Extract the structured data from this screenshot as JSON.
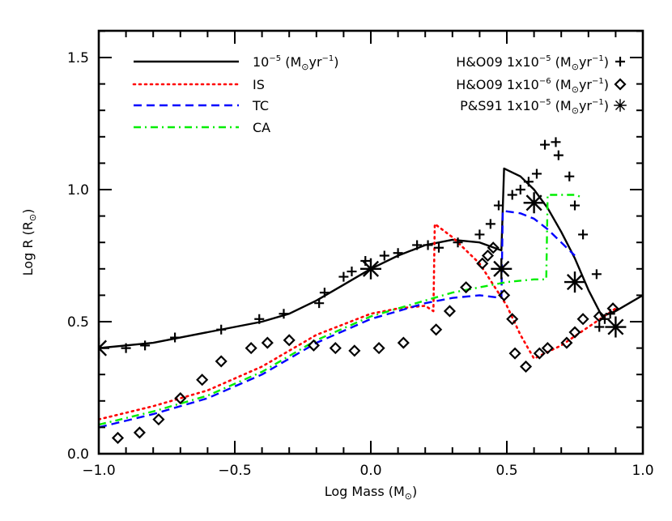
{
  "chart_data": {
    "type": "line",
    "title": "",
    "xlabel": "Log Mass (M⊙)",
    "ylabel": "Log R (R⊙)",
    "xlim": [
      -1.0,
      1.0
    ],
    "ylim": [
      0.0,
      1.6
    ],
    "grid": false,
    "legend_position": "upper-left (lines) and upper-right (markers)",
    "x_ticks": [
      -1.0,
      -0.5,
      0.0,
      0.5,
      1.0
    ],
    "x_tick_labels": [
      "−1.0",
      "−0.5",
      "0.0",
      "0.5",
      "1.0"
    ],
    "y_ticks": [
      0.0,
      0.5,
      1.0,
      1.5
    ],
    "y_tick_labels": [
      "0.0",
      "0.5",
      "1.0",
      "1.5"
    ],
    "x_minor_step": 0.1,
    "y_minor_step": 0.1,
    "series": [
      {
        "name": "10⁻⁵ (M⊙yr⁻¹)",
        "kind": "line",
        "style": "solid",
        "color": "#000000",
        "x": [
          -1.0,
          -0.8,
          -0.6,
          -0.4,
          -0.3,
          -0.2,
          -0.1,
          0.0,
          0.1,
          0.2,
          0.3,
          0.4,
          0.48,
          0.49,
          0.55,
          0.6,
          0.65,
          0.7,
          0.75,
          0.8,
          0.85,
          0.9,
          1.0
        ],
        "y": [
          0.4,
          0.42,
          0.46,
          0.5,
          0.53,
          0.58,
          0.64,
          0.7,
          0.75,
          0.79,
          0.81,
          0.8,
          0.77,
          1.08,
          1.05,
          1.0,
          0.93,
          0.84,
          0.74,
          0.62,
          0.52,
          0.54,
          0.6
        ]
      },
      {
        "name": "IS",
        "kind": "line",
        "style": "dotted",
        "color": "#ff0000",
        "x": [
          -1.0,
          -0.8,
          -0.6,
          -0.4,
          -0.2,
          0.0,
          0.1,
          0.2,
          0.23,
          0.235,
          0.3,
          0.4,
          0.5,
          0.55,
          0.6,
          0.7,
          0.8,
          0.9
        ],
        "y": [
          0.13,
          0.18,
          0.24,
          0.33,
          0.45,
          0.53,
          0.55,
          0.56,
          0.54,
          0.87,
          0.82,
          0.72,
          0.56,
          0.45,
          0.36,
          0.41,
          0.48,
          0.55
        ]
      },
      {
        "name": "TC",
        "kind": "line",
        "style": "dashed",
        "color": "#0000ff",
        "x": [
          -1.0,
          -0.8,
          -0.6,
          -0.4,
          -0.2,
          0.0,
          0.2,
          0.3,
          0.4,
          0.48,
          0.485,
          0.55,
          0.6,
          0.65,
          0.7,
          0.75
        ],
        "y": [
          0.1,
          0.15,
          0.21,
          0.3,
          0.42,
          0.51,
          0.57,
          0.59,
          0.6,
          0.59,
          0.92,
          0.91,
          0.89,
          0.85,
          0.8,
          0.75
        ]
      },
      {
        "name": "CA",
        "kind": "line",
        "style": "dash-dot",
        "color": "#00ee00",
        "x": [
          -1.0,
          -0.8,
          -0.6,
          -0.4,
          -0.2,
          0.0,
          0.2,
          0.3,
          0.4,
          0.5,
          0.6,
          0.645,
          0.65,
          0.7,
          0.75,
          0.78
        ],
        "y": [
          0.11,
          0.16,
          0.22,
          0.31,
          0.43,
          0.52,
          0.58,
          0.61,
          0.63,
          0.65,
          0.66,
          0.66,
          0.98,
          0.98,
          0.98,
          0.97
        ]
      },
      {
        "name": "H&O09 1x10⁻⁵ (M⊙yr⁻¹)",
        "kind": "scatter",
        "marker": "plus",
        "color": "#000000",
        "x": [
          -0.9,
          -0.83,
          -0.72,
          -0.55,
          -0.41,
          -0.32,
          -0.19,
          -0.17,
          -0.1,
          -0.07,
          -0.02,
          0.05,
          0.1,
          0.17,
          0.21,
          0.25,
          0.32,
          0.4,
          0.44,
          0.47,
          0.52,
          0.55,
          0.58,
          0.61,
          0.64,
          0.68,
          0.69,
          0.73,
          0.75,
          0.78,
          0.83,
          0.84,
          0.86,
          0.88
        ],
        "y": [
          0.4,
          0.41,
          0.44,
          0.47,
          0.51,
          0.53,
          0.57,
          0.61,
          0.67,
          0.69,
          0.73,
          0.75,
          0.76,
          0.79,
          0.79,
          0.78,
          0.8,
          0.83,
          0.87,
          0.94,
          0.98,
          1.0,
          1.03,
          1.06,
          1.17,
          1.18,
          1.13,
          1.05,
          0.94,
          0.83,
          0.68,
          0.48,
          0.51,
          0.53
        ]
      },
      {
        "name": "H&O09 1x10⁻⁶ (M⊙yr⁻¹)",
        "kind": "scatter",
        "marker": "diamond",
        "color": "#000000",
        "x": [
          -0.93,
          -0.85,
          -0.78,
          -0.7,
          -0.62,
          -0.55,
          -0.44,
          -0.38,
          -0.3,
          -0.21,
          -0.13,
          -0.06,
          0.03,
          0.12,
          0.24,
          0.29,
          0.35,
          0.41,
          0.43,
          0.45,
          0.49,
          0.52,
          0.53,
          0.57,
          0.62,
          0.65,
          0.72,
          0.75,
          0.78,
          0.84,
          0.89
        ],
        "y": [
          0.06,
          0.08,
          0.13,
          0.21,
          0.28,
          0.35,
          0.4,
          0.42,
          0.43,
          0.41,
          0.4,
          0.39,
          0.4,
          0.42,
          0.47,
          0.54,
          0.63,
          0.72,
          0.75,
          0.78,
          0.6,
          0.51,
          0.38,
          0.33,
          0.38,
          0.4,
          0.42,
          0.46,
          0.51,
          0.52,
          0.55
        ]
      },
      {
        "name": "P&S91 1x10⁻⁵ (M⊙yr⁻¹)",
        "kind": "scatter",
        "marker": "asterisk",
        "color": "#000000",
        "x": [
          -1.0,
          0.0,
          0.48,
          0.6,
          0.75,
          0.9
        ],
        "y": [
          0.4,
          0.7,
          0.7,
          0.95,
          0.65,
          0.48
        ]
      }
    ]
  },
  "axes": {
    "x_title_main": "Log Mass (M",
    "x_title_sun": "⊙",
    "x_title_end": ")",
    "y_title_main": "Log R (R",
    "y_title_sun": "⊙",
    "y_title_end": ")"
  },
  "legend": {
    "lines": [
      {
        "label": "10",
        "sup": "−5",
        "unit": " (M",
        "sun": "⊙",
        "unit2": "yr",
        "sup2": "−1",
        "end": ")"
      },
      {
        "label": "IS"
      },
      {
        "label": "TC"
      },
      {
        "label": "CA"
      }
    ],
    "markers": [
      {
        "label": "H&O09  1x10",
        "sup": "−5",
        "unit": " (M",
        "sun": "⊙",
        "unit2": "yr",
        "sup2": "−1",
        "end": ")",
        "marker": "plus"
      },
      {
        "label": "H&O09  1x10",
        "sup": "−6",
        "unit": " (M",
        "sun": "⊙",
        "unit2": "yr",
        "sup2": "−1",
        "end": ")",
        "marker": "diamond"
      },
      {
        "label": "P&S91  1x10",
        "sup": "−5",
        "unit": " (M",
        "sun": "⊙",
        "unit2": "yr",
        "sup2": "−1",
        "end": ")",
        "marker": "asterisk"
      }
    ]
  }
}
